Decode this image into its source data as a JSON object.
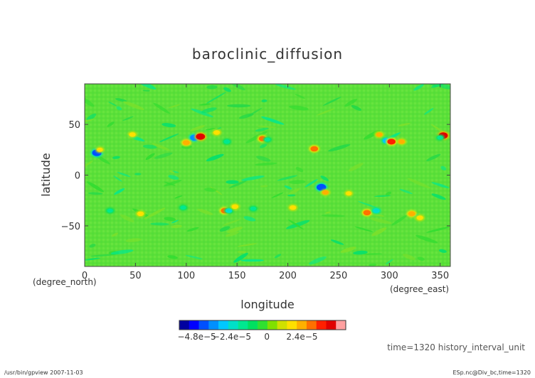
{
  "chart_data": {
    "type": "heatmap",
    "title": "baroclinic_diffusion",
    "xlabel": "longitude",
    "ylabel": "latitude",
    "x_unit": "(degree_east)",
    "y_unit": "(degree_north)",
    "xlim": [
      0,
      360
    ],
    "ylim": [
      -90,
      90
    ],
    "x_ticks": [
      0,
      50,
      100,
      150,
      200,
      250,
      300,
      350
    ],
    "x_tick_labels": [
      "0",
      "50",
      "100",
      "150",
      "200",
      "250",
      "300",
      "350"
    ],
    "y_ticks": [
      50,
      0,
      -50
    ],
    "y_tick_labels": [
      "50",
      "0",
      "−50"
    ],
    "background_value": 0,
    "features": [
      {
        "lon": 12,
        "lat": 22,
        "value": -4.5e-05
      },
      {
        "lon": 15,
        "lat": 25,
        "value": 1.5e-05
      },
      {
        "lon": 47,
        "lat": 40,
        "value": 2e-05
      },
      {
        "lon": 25,
        "lat": -35,
        "value": -1.5e-05
      },
      {
        "lon": 108,
        "lat": 37,
        "value": -3.8e-05
      },
      {
        "lon": 114,
        "lat": 38,
        "value": 4.2e-05
      },
      {
        "lon": 100,
        "lat": 32,
        "value": 2.6e-05
      },
      {
        "lon": 130,
        "lat": 42,
        "value": 2e-05
      },
      {
        "lon": 140,
        "lat": 33,
        "value": -1.8e-05
      },
      {
        "lon": 175,
        "lat": 36,
        "value": 2.8e-05
      },
      {
        "lon": 180,
        "lat": 35,
        "value": -1.5e-05
      },
      {
        "lon": 226,
        "lat": 26,
        "value": 3e-05
      },
      {
        "lon": 233,
        "lat": -12,
        "value": -4.6e-05
      },
      {
        "lon": 237,
        "lat": -17,
        "value": 2.2e-05
      },
      {
        "lon": 260,
        "lat": -18,
        "value": 1.5e-05
      },
      {
        "lon": 290,
        "lat": 40,
        "value": 2.2e-05
      },
      {
        "lon": 297,
        "lat": 34,
        "value": -2.8e-05
      },
      {
        "lon": 302,
        "lat": 33,
        "value": 3.5e-05
      },
      {
        "lon": 312,
        "lat": 33,
        "value": 2.2e-05
      },
      {
        "lon": 353,
        "lat": 39,
        "value": 4.3e-05
      },
      {
        "lon": 350,
        "lat": 37,
        "value": -1.5e-05
      },
      {
        "lon": 138,
        "lat": -35,
        "value": 3.2e-05
      },
      {
        "lon": 142,
        "lat": -35,
        "value": -2.2e-05
      },
      {
        "lon": 148,
        "lat": -31,
        "value": 2e-05
      },
      {
        "lon": 97,
        "lat": -32,
        "value": -1.5e-05
      },
      {
        "lon": 205,
        "lat": -32,
        "value": 2e-05
      },
      {
        "lon": 278,
        "lat": -37,
        "value": 3e-05
      },
      {
        "lon": 287,
        "lat": -35,
        "value": -2.4e-05
      },
      {
        "lon": 322,
        "lat": -38,
        "value": 2.6e-05
      },
      {
        "lon": 330,
        "lat": -42,
        "value": 2e-05
      },
      {
        "lon": 55,
        "lat": -38,
        "value": 2e-05
      },
      {
        "lon": 166,
        "lat": -33,
        "value": -1.5e-05
      }
    ],
    "colorbar": {
      "colors": [
        "#0000a0",
        "#0000ff",
        "#0050ff",
        "#0090ff",
        "#00c8ff",
        "#00e0c8",
        "#00e890",
        "#00e060",
        "#30e030",
        "#80e000",
        "#d0e000",
        "#ffe000",
        "#ffb000",
        "#ff7000",
        "#ff2000",
        "#e00000",
        "#ffa0a0"
      ],
      "tick_labels": [
        "−4.8e−5",
        "−2.4e−5",
        "0",
        "2.4e−5"
      ],
      "tick_values": [
        -4.8e-05,
        -2.4e-05,
        0,
        2.4e-05
      ],
      "vmin": -6e-05,
      "vmax": 5.4e-05
    }
  },
  "info_text": "time=1320  history_interval_unit",
  "footer_left": "/usr/bin/gpview   2007-11-03",
  "footer_right": "ESp.nc@Div_bc,time=1320"
}
